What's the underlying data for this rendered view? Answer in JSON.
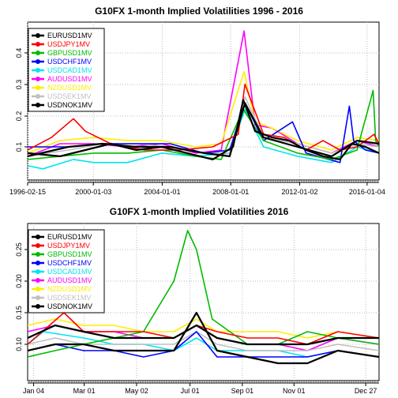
{
  "chart_data": [
    {
      "type": "line",
      "title": "G10FX 1-month Implied Volatilities 1996 - 2016",
      "xlabel": "",
      "ylabel": "",
      "x_ticks": [
        "1996-02-15",
        "2000-01-03",
        "2004-01-01",
        "2008-01-01",
        "2012-01-02",
        "2016-01-04"
      ],
      "y_ticks": [
        "0.1",
        "0.2",
        "0.3",
        "0.4"
      ],
      "ylim": [
        0.02,
        0.48
      ],
      "xlim": [
        1996.1,
        2016.8
      ],
      "grid": true,
      "legend_position": "top-left",
      "series": [
        {
          "name": "EURUSD1MV",
          "color": "#000000",
          "x": [
            1996.1,
            1998.0,
            1999.5,
            2001.0,
            2002.5,
            2004.0,
            2005.5,
            2007.0,
            2008.2,
            2008.8,
            2009.5,
            2010.5,
            2011.5,
            2012.5,
            2013.5,
            2014.5,
            2015.2,
            2016.0,
            2016.8
          ],
          "y": [
            0.08,
            0.07,
            0.09,
            0.11,
            0.09,
            0.1,
            0.08,
            0.06,
            0.1,
            0.25,
            0.15,
            0.13,
            0.12,
            0.09,
            0.07,
            0.06,
            0.11,
            0.1,
            0.08
          ]
        },
        {
          "name": "USDJPY1MV",
          "color": "#ff0000",
          "x": [
            1996.1,
            1997.5,
            1998.8,
            1999.5,
            2001.0,
            2003.0,
            2005.0,
            2007.0,
            2008.5,
            2008.9,
            2010.0,
            2011.2,
            2012.5,
            2013.5,
            2014.5,
            2015.5,
            2016.5,
            2016.8
          ],
          "y": [
            0.09,
            0.13,
            0.19,
            0.15,
            0.11,
            0.09,
            0.09,
            0.1,
            0.14,
            0.3,
            0.14,
            0.13,
            0.09,
            0.12,
            0.09,
            0.1,
            0.14,
            0.11
          ]
        },
        {
          "name": "GBPUSD1MV",
          "color": "#00bb00",
          "x": [
            1996.1,
            1998.0,
            2000.0,
            2002.0,
            2004.0,
            2006.0,
            2007.5,
            2008.8,
            2010.0,
            2012.0,
            2014.0,
            2015.5,
            2016.45,
            2016.6,
            2016.8
          ],
          "y": [
            0.06,
            0.07,
            0.08,
            0.08,
            0.09,
            0.07,
            0.06,
            0.22,
            0.12,
            0.08,
            0.06,
            0.09,
            0.28,
            0.12,
            0.1
          ]
        },
        {
          "name": "USDCHF1MV",
          "color": "#0000ff",
          "x": [
            1996.1,
            1998.5,
            2000.5,
            2002.5,
            2004.5,
            2006.5,
            2008.0,
            2008.9,
            2010.0,
            2011.7,
            2012.5,
            2014.5,
            2015.05,
            2015.3,
            2016.0,
            2016.8
          ],
          "y": [
            0.1,
            0.1,
            0.11,
            0.11,
            0.11,
            0.08,
            0.09,
            0.24,
            0.12,
            0.18,
            0.08,
            0.05,
            0.23,
            0.12,
            0.09,
            0.08
          ]
        },
        {
          "name": "USDCAD1MV",
          "color": "#00e5ee",
          "x": [
            1996.1,
            1997.0,
            1998.8,
            2000.0,
            2002.0,
            2004.0,
            2006.0,
            2008.0,
            2008.9,
            2010.0,
            2012.0,
            2014.0,
            2015.5,
            2016.8
          ],
          "y": [
            0.04,
            0.03,
            0.06,
            0.05,
            0.05,
            0.08,
            0.07,
            0.08,
            0.22,
            0.1,
            0.07,
            0.05,
            0.1,
            0.08
          ]
        },
        {
          "name": "AUDUSD1MV",
          "color": "#ff00ff",
          "x": [
            1996.1,
            1998.0,
            2000.0,
            2002.0,
            2004.0,
            2006.0,
            2007.5,
            2008.85,
            2009.5,
            2010.5,
            2012.0,
            2014.0,
            2015.5,
            2016.8
          ],
          "y": [
            0.07,
            0.11,
            0.11,
            0.1,
            0.11,
            0.08,
            0.09,
            0.47,
            0.17,
            0.16,
            0.11,
            0.08,
            0.12,
            0.1
          ]
        },
        {
          "name": "NZDUSD1MV",
          "color": "#ffee00",
          "x": [
            1996.1,
            1998.0,
            2000.0,
            2002.0,
            2004.0,
            2006.0,
            2007.5,
            2008.85,
            2009.5,
            2010.5,
            2012.0,
            2014.0,
            2015.5,
            2016.8
          ],
          "y": [
            0.08,
            0.12,
            0.13,
            0.12,
            0.12,
            0.1,
            0.11,
            0.34,
            0.18,
            0.16,
            0.12,
            0.09,
            0.13,
            0.12
          ]
        },
        {
          "name": "USDSEK1MV",
          "color": "#c0c0c0",
          "x": [
            1996.1,
            1998.5,
            2000.5,
            2002.5,
            2004.5,
            2006.5,
            2008.0,
            2008.9,
            2010.0,
            2012.0,
            2014.0,
            2015.5,
            2016.8
          ],
          "y": [
            0.07,
            0.09,
            0.11,
            0.11,
            0.1,
            0.08,
            0.08,
            0.26,
            0.13,
            0.11,
            0.08,
            0.11,
            0.1
          ]
        },
        {
          "name": "USDNOK1MV",
          "color": "#000000",
          "x": [
            1996.1,
            1998.5,
            2000.5,
            2002.5,
            2004.5,
            2006.5,
            2008.0,
            2008.9,
            2010.0,
            2012.0,
            2014.0,
            2015.5,
            2016.8
          ],
          "y": [
            0.07,
            0.1,
            0.11,
            0.1,
            0.1,
            0.08,
            0.07,
            0.24,
            0.13,
            0.1,
            0.07,
            0.12,
            0.11
          ]
        }
      ]
    },
    {
      "type": "line",
      "title": "G10FX 1-month Implied Volatilities  2016",
      "xlabel": "",
      "ylabel": "",
      "x_ticks": [
        "Jan 04",
        "Mar 01",
        "May 02",
        "Jul 01",
        "Sep 01",
        "Nov 01",
        "Dec 27"
      ],
      "y_ticks": [
        "0.10",
        "0.15",
        "0.20",
        "0.25"
      ],
      "ylim": [
        0.07,
        0.29
      ],
      "xlim": [
        "2016-01-04",
        "2016-12-27"
      ],
      "grid": true,
      "legend_position": "top-left",
      "series": [
        {
          "name": "EURUSD1MV",
          "color": "#000000",
          "x": [
            "2016-01-04",
            "2016-02-01",
            "2016-03-01",
            "2016-04-01",
            "2016-05-01",
            "2016-06-01",
            "2016-06-24",
            "2016-07-15",
            "2016-08-15",
            "2016-09-15",
            "2016-10-15",
            "2016-11-15",
            "2016-12-27"
          ],
          "y": [
            0.09,
            0.1,
            0.1,
            0.09,
            0.09,
            0.09,
            0.15,
            0.09,
            0.08,
            0.07,
            0.07,
            0.09,
            0.08
          ]
        },
        {
          "name": "USDJPY1MV",
          "color": "#ff0000",
          "x": [
            "2016-01-04",
            "2016-02-10",
            "2016-03-01",
            "2016-04-01",
            "2016-05-01",
            "2016-06-01",
            "2016-06-24",
            "2016-07-15",
            "2016-08-15",
            "2016-09-15",
            "2016-10-15",
            "2016-11-15",
            "2016-12-27"
          ],
          "y": [
            0.1,
            0.15,
            0.12,
            0.12,
            0.12,
            0.11,
            0.13,
            0.12,
            0.11,
            0.11,
            0.1,
            0.12,
            0.11
          ]
        },
        {
          "name": "GBPUSD1MV",
          "color": "#00bb00",
          "x": [
            "2016-01-04",
            "2016-02-01",
            "2016-03-01",
            "2016-04-01",
            "2016-05-01",
            "2016-06-01",
            "2016-06-15",
            "2016-06-24",
            "2016-07-10",
            "2016-08-15",
            "2016-09-15",
            "2016-10-15",
            "2016-11-15",
            "2016-12-27"
          ],
          "y": [
            0.08,
            0.09,
            0.1,
            0.11,
            0.12,
            0.2,
            0.28,
            0.25,
            0.14,
            0.1,
            0.1,
            0.12,
            0.11,
            0.1
          ]
        },
        {
          "name": "USDCHF1MV",
          "color": "#0000ff",
          "x": [
            "2016-01-04",
            "2016-02-01",
            "2016-03-01",
            "2016-04-01",
            "2016-05-01",
            "2016-06-01",
            "2016-06-24",
            "2016-07-15",
            "2016-08-15",
            "2016-09-15",
            "2016-10-15",
            "2016-11-15",
            "2016-12-27"
          ],
          "y": [
            0.09,
            0.1,
            0.09,
            0.09,
            0.08,
            0.09,
            0.12,
            0.08,
            0.08,
            0.08,
            0.08,
            0.09,
            0.08
          ]
        },
        {
          "name": "USDCAD1MV",
          "color": "#00e5ee",
          "x": [
            "2016-01-04",
            "2016-01-20",
            "2016-03-01",
            "2016-04-01",
            "2016-05-01",
            "2016-06-01",
            "2016-06-24",
            "2016-07-15",
            "2016-08-15",
            "2016-09-15",
            "2016-10-15",
            "2016-11-15",
            "2016-12-27"
          ],
          "y": [
            0.1,
            0.12,
            0.11,
            0.1,
            0.1,
            0.09,
            0.11,
            0.09,
            0.09,
            0.09,
            0.08,
            0.09,
            0.08
          ]
        },
        {
          "name": "AUDUSD1MV",
          "color": "#ff00ff",
          "x": [
            "2016-01-04",
            "2016-02-01",
            "2016-03-01",
            "2016-04-01",
            "2016-05-01",
            "2016-06-01",
            "2016-06-24",
            "2016-07-15",
            "2016-08-15",
            "2016-09-15",
            "2016-10-15",
            "2016-11-15",
            "2016-12-27"
          ],
          "y": [
            0.12,
            0.13,
            0.12,
            0.12,
            0.11,
            0.11,
            0.13,
            0.11,
            0.1,
            0.1,
            0.09,
            0.11,
            0.1
          ]
        },
        {
          "name": "NZDUSD1MV",
          "color": "#ffee00",
          "x": [
            "2016-01-04",
            "2016-02-01",
            "2016-03-01",
            "2016-04-01",
            "2016-05-01",
            "2016-06-01",
            "2016-06-24",
            "2016-07-15",
            "2016-08-15",
            "2016-09-15",
            "2016-10-15",
            "2016-11-15",
            "2016-12-27"
          ],
          "y": [
            0.13,
            0.14,
            0.13,
            0.13,
            0.12,
            0.12,
            0.14,
            0.12,
            0.12,
            0.12,
            0.11,
            0.12,
            0.11
          ]
        },
        {
          "name": "USDSEK1MV",
          "color": "#c0c0c0",
          "x": [
            "2016-01-04",
            "2016-02-01",
            "2016-03-01",
            "2016-04-01",
            "2016-05-01",
            "2016-06-01",
            "2016-06-24",
            "2016-07-15",
            "2016-08-15",
            "2016-09-15",
            "2016-10-15",
            "2016-11-15",
            "2016-12-27"
          ],
          "y": [
            0.1,
            0.11,
            0.1,
            0.1,
            0.1,
            0.1,
            0.12,
            0.1,
            0.09,
            0.09,
            0.09,
            0.1,
            0.09
          ]
        },
        {
          "name": "USDNOK1MV",
          "color": "#000000",
          "x": [
            "2016-01-04",
            "2016-02-01",
            "2016-03-01",
            "2016-04-01",
            "2016-05-01",
            "2016-06-01",
            "2016-06-24",
            "2016-07-15",
            "2016-08-15",
            "2016-09-15",
            "2016-10-15",
            "2016-11-15",
            "2016-12-27"
          ],
          "y": [
            0.11,
            0.13,
            0.12,
            0.11,
            0.11,
            0.11,
            0.13,
            0.11,
            0.1,
            0.1,
            0.1,
            0.11,
            0.11
          ]
        }
      ]
    }
  ]
}
